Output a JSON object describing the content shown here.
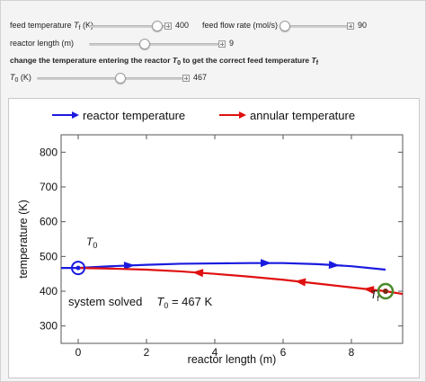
{
  "controls": {
    "feed_temperature": {
      "label_prefix": "feed temperature ",
      "label_var": "T",
      "label_sub": "f",
      "label_unit": " (K)",
      "value": "400"
    },
    "feed_flow_rate": {
      "label": "feed flow rate (mol/s)",
      "value": "90"
    },
    "reactor_length": {
      "label": "reactor length (m)",
      "value": "9"
    },
    "hint": {
      "prefix": "change the temperature entering the reactor ",
      "var1": "T",
      "sub1": "0",
      "middle": " to get the correct feed temperature ",
      "var2": "T",
      "sub2": "f"
    },
    "t0": {
      "label_var": "T",
      "label_sub": "0",
      "label_unit": " (K)",
      "value": "467"
    }
  },
  "legend": {
    "reactor": "reactor temperature",
    "annular": "annular temperature"
  },
  "colors": {
    "reactor": "#1a1adf",
    "annular": "#e01010",
    "tf_marker": "#4a8a2a"
  },
  "annotations": {
    "status": "system solved",
    "t0_var": "T",
    "t0_sub": "0",
    "t0_value": " = 467 K",
    "t0_label_var": "T",
    "t0_label_sub": "0",
    "tf_label_var": "T",
    "tf_label_sub": "f"
  },
  "chart_data": {
    "type": "line",
    "xlabel": "reactor length (m)",
    "ylabel": "temperature (K)",
    "xlim": [
      -0.5,
      9.5
    ],
    "ylim": [
      250,
      850
    ],
    "xticks": [
      0,
      2,
      4,
      6,
      8
    ],
    "yticks": [
      300,
      400,
      500,
      600,
      700,
      800
    ],
    "series": [
      {
        "name": "reactor temperature",
        "color": "#1a1adf",
        "x": [
          -0.5,
          0,
          1,
          2,
          3,
          4,
          5,
          6,
          7,
          8,
          9
        ],
        "y": [
          467,
          467,
          472,
          476,
          479,
          480,
          481,
          481,
          478,
          472,
          462
        ]
      },
      {
        "name": "annular temperature",
        "color": "#e01010",
        "x": [
          0,
          1,
          2,
          3,
          4,
          5,
          6,
          7,
          8,
          9,
          9.5
        ],
        "y": [
          467,
          465,
          462,
          457,
          450,
          442,
          433,
          422,
          411,
          400,
          392
        ]
      }
    ],
    "markers": [
      {
        "name": "T0",
        "x": 0,
        "y": 467
      },
      {
        "name": "Tf",
        "x": 9,
        "y": 400
      }
    ]
  }
}
